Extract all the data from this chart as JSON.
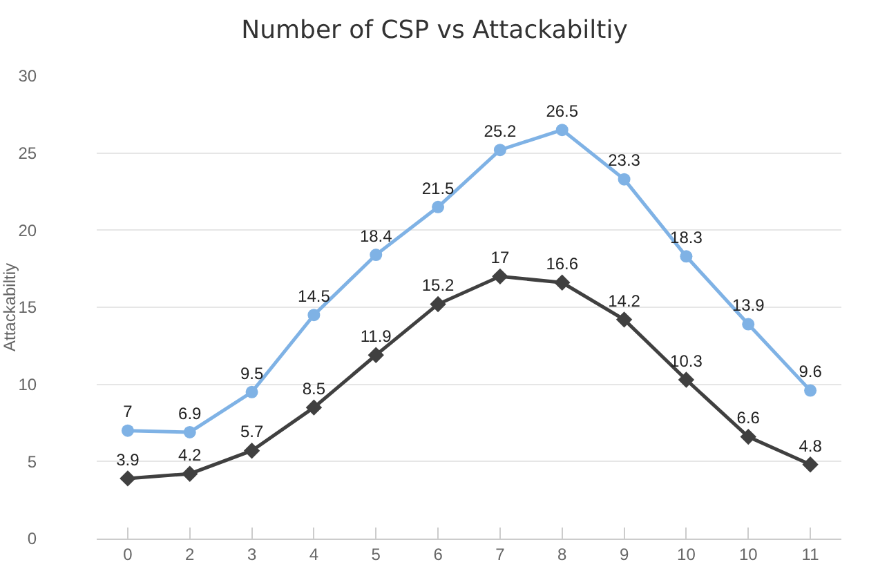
{
  "chart_data": {
    "type": "line",
    "title": "Number of CSP vs Attackabiltiy",
    "ylabel": "Attackabiltiy",
    "categories": [
      "0",
      "2",
      "3",
      "4",
      "5",
      "6",
      "7",
      "8",
      "9",
      "10",
      "10",
      "11"
    ],
    "series": [
      {
        "color": "#7fb2e5",
        "marker": "circle",
        "values": [
          7,
          6.9,
          9.5,
          14.5,
          18.4,
          21.5,
          25.2,
          26.5,
          23.3,
          18.3,
          13.9,
          9.6
        ]
      },
      {
        "color": "#404040",
        "marker": "diamond",
        "values": [
          3.9,
          4.2,
          5.7,
          8.5,
          11.9,
          15.2,
          17,
          16.6,
          14.2,
          10.3,
          6.6,
          4.8
        ]
      }
    ],
    "ylim": [
      0,
      30
    ],
    "yticks": [
      0,
      5,
      10,
      15,
      20,
      25,
      30
    ],
    "grid": "y",
    "data_labels": true,
    "legend": false
  }
}
